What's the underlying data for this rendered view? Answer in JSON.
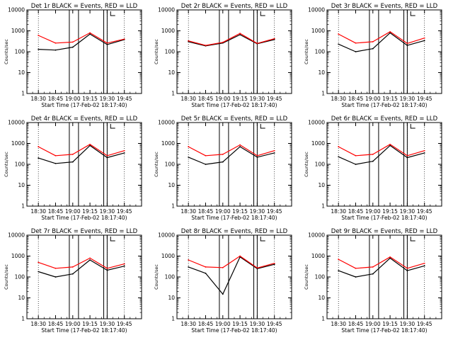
{
  "figure": {
    "ylabel": "Counts/sec",
    "xlabel": "Start Time (17-Feb-02 18:17:40)",
    "x_tick_labels": [
      "18:30",
      "18:45",
      "19:00",
      "19:15",
      "19:30",
      "19:45"
    ],
    "y_tick_labels": [
      "1",
      "10",
      "100",
      "1000",
      "10000"
    ],
    "colors": {
      "events": "#000000",
      "lld": "#ff0000"
    }
  },
  "chart_data": [
    {
      "type": "line",
      "title": "Det 1r BLACK = Events, RED = LLD",
      "x": [
        18.3,
        18.45,
        19.0,
        19.15,
        19.3,
        19.45
      ],
      "ylim": [
        1,
        10000
      ],
      "yscale": "log",
      "series": [
        {
          "name": "Events",
          "values": [
            130,
            120,
            165,
            700,
            220,
            380
          ]
        },
        {
          "name": "LLD",
          "values": [
            600,
            260,
            290,
            800,
            260,
            400
          ]
        }
      ]
    },
    {
      "type": "line",
      "title": "Det 2r BLACK = Events, RED = LLD",
      "x": [
        18.3,
        18.45,
        19.0,
        19.15,
        19.3,
        19.45
      ],
      "ylim": [
        1,
        10000
      ],
      "yscale": "log",
      "series": [
        {
          "name": "Events",
          "values": [
            300,
            190,
            260,
            650,
            240,
            380
          ]
        },
        {
          "name": "LLD",
          "values": [
            330,
            200,
            280,
            750,
            250,
            420
          ]
        }
      ]
    },
    {
      "type": "line",
      "title": "Det 3r BLACK = Events, RED = LLD",
      "x": [
        18.3,
        18.45,
        19.0,
        19.15,
        19.3,
        19.45
      ],
      "ylim": [
        1,
        10000
      ],
      "yscale": "log",
      "series": [
        {
          "name": "Events",
          "values": [
            230,
            100,
            140,
            800,
            200,
            340
          ]
        },
        {
          "name": "LLD",
          "values": [
            700,
            260,
            300,
            900,
            250,
            450
          ]
        }
      ]
    },
    {
      "type": "line",
      "title": "Det 4r BLACK = Events, RED = LLD",
      "x": [
        18.3,
        18.45,
        19.0,
        19.15,
        19.3,
        19.45
      ],
      "ylim": [
        1,
        10000
      ],
      "yscale": "log",
      "series": [
        {
          "name": "Events",
          "values": [
            200,
            110,
            130,
            800,
            210,
            350
          ]
        },
        {
          "name": "LLD",
          "values": [
            700,
            260,
            300,
            900,
            260,
            450
          ]
        }
      ]
    },
    {
      "type": "line",
      "title": "Det 5r BLACK = Events, RED = LLD",
      "x": [
        18.3,
        18.45,
        19.0,
        19.15,
        19.3,
        19.45
      ],
      "ylim": [
        1,
        10000
      ],
      "yscale": "log",
      "series": [
        {
          "name": "Events",
          "values": [
            220,
            100,
            130,
            700,
            220,
            350
          ]
        },
        {
          "name": "LLD",
          "values": [
            700,
            260,
            300,
            850,
            260,
            450
          ]
        }
      ]
    },
    {
      "type": "line",
      "title": "Det 6r BLACK = Events, RED = LLD",
      "x": [
        18.3,
        18.45,
        19.0,
        19.15,
        19.3,
        19.45
      ],
      "ylim": [
        1,
        10000
      ],
      "yscale": "log",
      "series": [
        {
          "name": "Events",
          "values": [
            230,
            100,
            140,
            800,
            210,
            350
          ]
        },
        {
          "name": "LLD",
          "values": [
            700,
            260,
            300,
            900,
            260,
            450
          ]
        }
      ]
    },
    {
      "type": "line",
      "title": "Det 7r BLACK = Events, RED = LLD",
      "x": [
        18.3,
        18.45,
        19.0,
        19.15,
        19.3,
        19.45
      ],
      "ylim": [
        1,
        10000
      ],
      "yscale": "log",
      "series": [
        {
          "name": "Events",
          "values": [
            180,
            100,
            140,
            650,
            210,
            330
          ]
        },
        {
          "name": "LLD",
          "values": [
            500,
            260,
            300,
            800,
            260,
            420
          ]
        }
      ]
    },
    {
      "type": "line",
      "title": "Det 8r BLACK = Events, RED = LLD",
      "x": [
        18.3,
        18.45,
        19.0,
        19.15,
        19.3,
        19.45
      ],
      "ylim": [
        1,
        10000
      ],
      "yscale": "log",
      "series": [
        {
          "name": "Events",
          "values": [
            300,
            150,
            15,
            900,
            250,
            400
          ]
        },
        {
          "name": "LLD",
          "values": [
            650,
            300,
            280,
            1000,
            270,
            450
          ]
        }
      ]
    },
    {
      "type": "line",
      "title": "Det 9r BLACK = Events, RED = LLD",
      "x": [
        18.3,
        18.45,
        19.0,
        19.15,
        19.3,
        19.45
      ],
      "ylim": [
        1,
        10000
      ],
      "yscale": "log",
      "series": [
        {
          "name": "Events",
          "values": [
            200,
            100,
            140,
            800,
            200,
            340
          ]
        },
        {
          "name": "LLD",
          "values": [
            700,
            260,
            300,
            900,
            260,
            450
          ]
        }
      ]
    }
  ]
}
